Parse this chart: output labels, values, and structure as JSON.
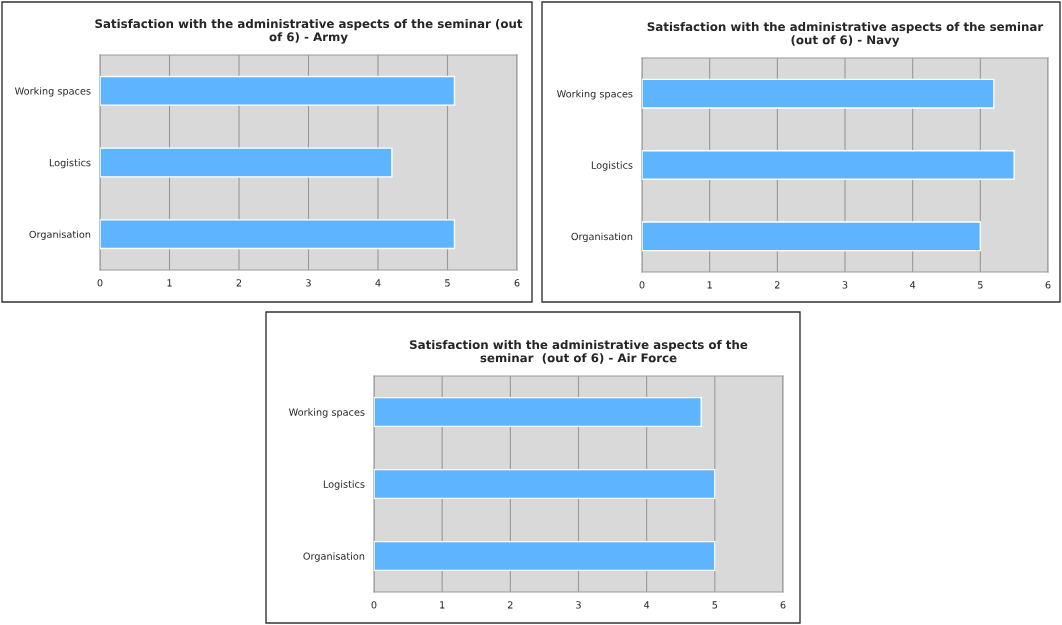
{
  "chart_data": [
    {
      "type": "bar",
      "orientation": "horizontal",
      "title": "Satisfaction with the administrative aspects of the seminar (out\nof 6) - Army",
      "categories": [
        "Working spaces",
        "Logistics",
        "Organisation"
      ],
      "values": [
        5.1,
        4.2,
        5.1
      ],
      "color": "#5eb4fe",
      "xlim": [
        0,
        6
      ],
      "xticks": [
        0,
        1,
        2,
        3,
        4,
        5,
        6
      ],
      "grid": "x",
      "legend": false
    },
    {
      "type": "bar",
      "orientation": "horizontal",
      "title": "Satisfaction with the administrative aspects of the seminar\n(out of 6) - Navy",
      "categories": [
        "Working spaces",
        "Logistics",
        "Organisation"
      ],
      "values": [
        5.2,
        5.5,
        5.0
      ],
      "color": "#5eb4fe",
      "xlim": [
        0,
        6
      ],
      "xticks": [
        0,
        1,
        2,
        3,
        4,
        5,
        6
      ],
      "grid": "x",
      "legend": false
    },
    {
      "type": "bar",
      "orientation": "horizontal",
      "title": "Satisfaction with the administrative aspects of the\nseminar  (out of 6) - Air Force",
      "categories": [
        "Working spaces",
        "Logistics",
        "Organisation"
      ],
      "values": [
        4.8,
        5.0,
        5.0
      ],
      "color": "#5eb4fe",
      "xlim": [
        0,
        6
      ],
      "xticks": [
        0,
        1,
        2,
        3,
        4,
        5,
        6
      ],
      "grid": "x",
      "legend": false
    }
  ]
}
